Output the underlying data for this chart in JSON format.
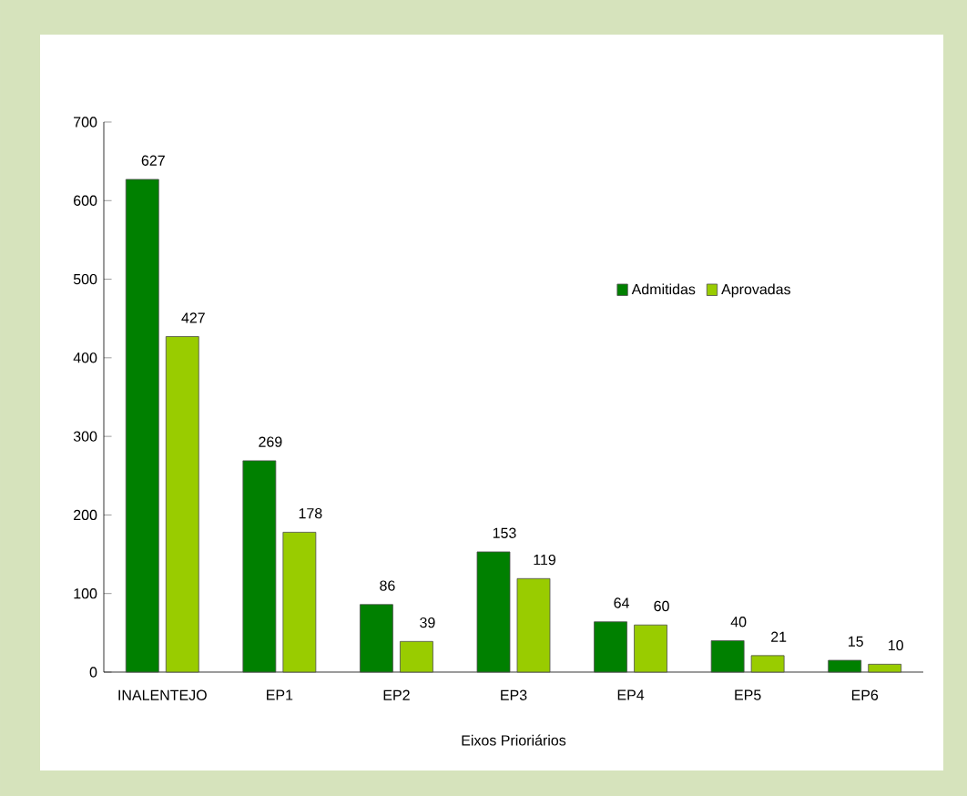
{
  "chart_data": {
    "type": "bar",
    "xlabel": "Eixos Prioriários",
    "categories": [
      "INALENTEJO",
      "EP1",
      "EP2",
      "EP3",
      "EP4",
      "EP5",
      "EP6"
    ],
    "series": [
      {
        "name": "Admitidas",
        "color": "#008000",
        "values": [
          627,
          269,
          86,
          153,
          64,
          40,
          15
        ]
      },
      {
        "name": "Aprovadas",
        "color": "#99cc00",
        "values": [
          427,
          178,
          39,
          119,
          60,
          21,
          10
        ]
      }
    ],
    "ylim": [
      0,
      700
    ],
    "yticks": [
      0,
      100,
      200,
      300,
      400,
      500,
      600,
      700
    ],
    "data_labels": true,
    "legend": "top right",
    "grid": false
  }
}
